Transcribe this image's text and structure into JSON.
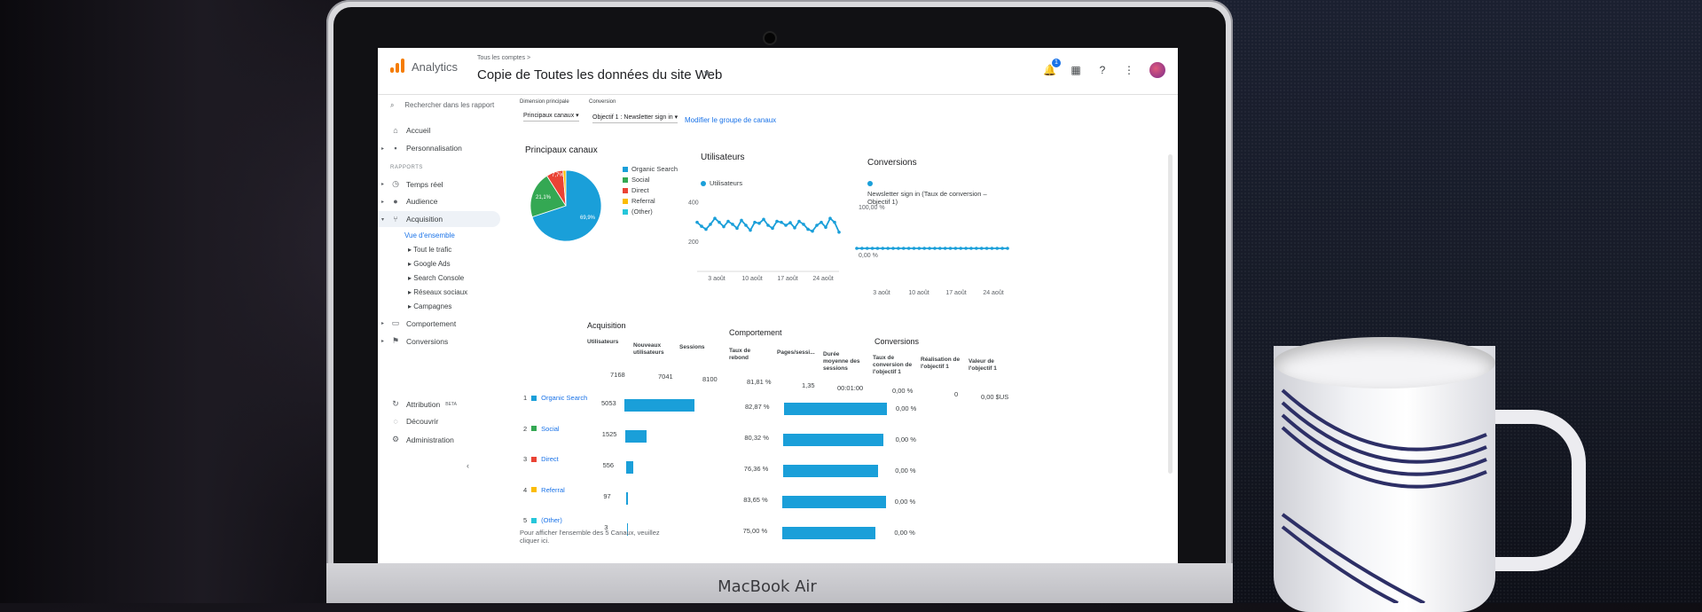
{
  "laptop": {
    "brand": "MacBook Air"
  },
  "app": {
    "name": "Analytics",
    "breadcrumb": "Tous les comptes >",
    "view_title": "Copie de Toutes les données du site Web",
    "notification_count": "1"
  },
  "sidebar": {
    "search_placeholder": "Rechercher dans les rapport",
    "items": [
      {
        "label": "Accueil",
        "icon": "home-icon"
      },
      {
        "label": "Personnalisation",
        "icon": "grid-icon"
      }
    ],
    "section_label": "RAPPORTS",
    "reports": [
      {
        "label": "Temps réel",
        "icon": "clock-icon"
      },
      {
        "label": "Audience",
        "icon": "person-icon"
      },
      {
        "label": "Acquisition",
        "icon": "fork-icon"
      }
    ],
    "acquisition_children": [
      {
        "label": "Vue d'ensemble",
        "active": true
      },
      {
        "label": "Tout le trafic"
      },
      {
        "label": "Google Ads"
      },
      {
        "label": "Search Console"
      },
      {
        "label": "Réseaux sociaux"
      },
      {
        "label": "Campagnes"
      }
    ],
    "more_reports": [
      {
        "label": "Comportement",
        "icon": "screen-icon"
      },
      {
        "label": "Conversions",
        "icon": "flag-icon"
      }
    ],
    "bottom": [
      {
        "label": "Attribution",
        "badge": "BETA",
        "icon": "attribution-icon"
      },
      {
        "label": "Découvrir",
        "icon": "lightbulb-icon"
      },
      {
        "label": "Administration",
        "icon": "gear-icon"
      }
    ]
  },
  "controls": {
    "primary_dimension_label": "Dimension principale",
    "primary_dimension_value": "Principaux canaux",
    "conversion_label": "Conversion",
    "conversion_value": "Objectif 1 : Newsletter sign in",
    "modify_link": "Modifier le groupe de canaux"
  },
  "cards": {
    "channels_title": "Principaux canaux",
    "users_title": "Utilisateurs",
    "users_legend": "Utilisateurs",
    "conversions_title": "Conversions",
    "conversions_legend": "Newsletter sign in (Taux de conversion – Objectif 1)",
    "conv_y_top": "100,00 %",
    "conv_y_bottom": "0,00 %"
  },
  "pie": {
    "legend": [
      {
        "label": "Organic Search",
        "color": "#1a9fd9"
      },
      {
        "label": "Social",
        "color": "#34a853"
      },
      {
        "label": "Direct",
        "color": "#ea4335"
      },
      {
        "label": "Referral",
        "color": "#fbbc04"
      },
      {
        "label": "(Other)",
        "color": "#26c6da"
      }
    ],
    "slice_labels": {
      "organic": "69,9%",
      "social": "21,1%",
      "direct": "7,7%"
    }
  },
  "chart_data": [
    {
      "type": "pie",
      "title": "Principaux canaux",
      "categories": [
        "Organic Search",
        "Social",
        "Direct",
        "Referral",
        "(Other)"
      ],
      "values": [
        69.9,
        21.1,
        7.7,
        1.3,
        0.0
      ]
    },
    {
      "type": "line",
      "title": "Utilisateurs",
      "series": [
        {
          "name": "Utilisateurs",
          "values": [
            300,
            280,
            265,
            290,
            320,
            300,
            278,
            305,
            290,
            270,
            310,
            285,
            260,
            300,
            295,
            315,
            285,
            270,
            305,
            300,
            285,
            298,
            272,
            305,
            290,
            265,
            255,
            285,
            300,
            275,
            320,
            300,
            250
          ]
        }
      ],
      "x_tick_labels": [
        "3 août",
        "10 août",
        "17 août",
        "24 août"
      ],
      "ylim": [
        150,
        420
      ],
      "y_tick_labels": [
        "400",
        "200"
      ]
    },
    {
      "type": "line",
      "title": "Conversions",
      "series": [
        {
          "name": "Newsletter sign in (Taux de conversion – Objectif 1)",
          "values": [
            0,
            0,
            0,
            0,
            0,
            0,
            0,
            0,
            0,
            0,
            0,
            0,
            0,
            0,
            0,
            0,
            0,
            0,
            0,
            0,
            0,
            0,
            0,
            0,
            0,
            0,
            0,
            0,
            0,
            0
          ]
        }
      ],
      "x_tick_labels": [
        "3 août",
        "10 août",
        "17 août",
        "24 août"
      ],
      "y_tick_labels": [
        "100,00 %",
        "0,00 %"
      ]
    }
  ],
  "tables": {
    "acquisition": {
      "title": "Acquisition",
      "headers": [
        "Utilisateurs",
        "Nouveaux utilisateurs",
        "Sessions"
      ],
      "totals": [
        "7168",
        "7041",
        "8100"
      ],
      "rows": [
        {
          "index": "1",
          "channel": "Organic Search",
          "color": "#1a9fd9",
          "users": "5053",
          "bar": 0.705
        },
        {
          "index": "2",
          "channel": "Social",
          "color": "#34a853",
          "users": "1525",
          "bar": 0.213
        },
        {
          "index": "3",
          "channel": "Direct",
          "color": "#ea4335",
          "users": "556",
          "bar": 0.078
        },
        {
          "index": "4",
          "channel": "Referral",
          "color": "#fbbc04",
          "users": "97",
          "bar": 0.014
        },
        {
          "index": "5",
          "channel": "(Other)",
          "color": "#26c6da",
          "users": "3",
          "bar": 0.0004
        }
      ]
    },
    "behavior": {
      "title": "Comportement",
      "headers": [
        "Taux de rebond",
        "Pages/sessi...",
        "Durée moyenne des sessions"
      ],
      "totals": [
        "81,81 %",
        "1,35",
        "00:01:00"
      ],
      "rows": [
        {
          "bounce": "82,87 %",
          "bar": 0.8287
        },
        {
          "bounce": "80,32 %",
          "bar": 0.8032
        },
        {
          "bounce": "76,36 %",
          "bar": 0.7636
        },
        {
          "bounce": "83,65 %",
          "bar": 0.8365
        },
        {
          "bounce": "75,00 %",
          "bar": 0.75
        }
      ]
    },
    "conversions": {
      "title": "Conversions",
      "headers": [
        "Taux de conversion de l'objectif 1",
        "Réalisation de l'objectif 1",
        "Valeur de l'objectif 1"
      ],
      "totals": [
        "0,00 %",
        "0",
        "0,00 $US"
      ],
      "rows": [
        "0,00 %",
        "0,00 %",
        "0,00 %",
        "0,00 %",
        "0,00 %"
      ]
    },
    "footer_note": "Pour afficher l'ensemble des 5 Canaux, veuillez cliquer ici."
  }
}
